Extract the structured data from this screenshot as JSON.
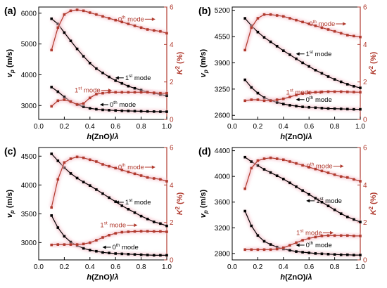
{
  "colors": {
    "left_series": "#000000",
    "right_series": "#b03a2e",
    "glow": "#f6c6cf"
  },
  "chart_data": [
    {
      "type": "line",
      "panel": "(a)",
      "xlabel_parts": [
        "h",
        "(ZnO)/",
        "λ"
      ],
      "ylabel_parts": [
        "v",
        "p",
        " (m/s)"
      ],
      "y2label_parts": [
        "K",
        "2",
        " (%)"
      ],
      "xlim": [
        0.0,
        1.0
      ],
      "xticks": [
        "0.0",
        "0.2",
        "0.4",
        "0.6",
        "0.8",
        "1.0"
      ],
      "ylim": [
        2550,
        6200
      ],
      "yticks": [
        3000,
        4000,
        5000,
        6000
      ],
      "y2lim": [
        0,
        6
      ],
      "y2ticks": [
        0,
        2,
        4,
        6
      ],
      "x": [
        0.1,
        0.15,
        0.2,
        0.25,
        0.3,
        0.35,
        0.4,
        0.45,
        0.5,
        0.55,
        0.6,
        0.65,
        0.7,
        0.75,
        0.8,
        0.85,
        0.9,
        0.95,
        1.0
      ],
      "series": [
        {
          "axis": "left",
          "values": [
            5820,
            5650,
            5370,
            5100,
            4840,
            4600,
            4380,
            4200,
            4060,
            3930,
            3810,
            3720,
            3630,
            3560,
            3500,
            3440,
            3400,
            3360,
            3320
          ]
        },
        {
          "axis": "left",
          "values": [
            3600,
            3450,
            3280,
            3130,
            3030,
            2960,
            2910,
            2880,
            2860,
            2850,
            2840,
            2830,
            2825,
            2820,
            2815,
            2810,
            2805,
            2800,
            2800
          ]
        },
        {
          "axis": "right",
          "values": [
            3.7,
            4.9,
            5.6,
            5.8,
            5.85,
            5.8,
            5.7,
            5.6,
            5.5,
            5.4,
            5.3,
            5.2,
            5.1,
            5.0,
            4.9,
            4.8,
            4.75,
            4.7,
            4.6
          ]
        },
        {
          "axis": "right",
          "values": [
            0.7,
            1.0,
            1.05,
            0.95,
            0.8,
            0.85,
            1.15,
            1.35,
            1.4,
            1.45,
            1.45,
            1.45,
            1.45,
            1.45,
            1.45,
            1.45,
            1.42,
            1.4,
            1.4
          ]
        }
      ],
      "annotations": [
        {
          "base": "0",
          "sup": "th",
          "tail": " mode",
          "color": "red",
          "x": 0.62,
          "axis": "right",
          "y": 5.35,
          "arrow": "right"
        },
        {
          "base": "1",
          "sup": "st",
          "tail": " mode",
          "color": "black",
          "x": 0.62,
          "axis": "left",
          "y": 3900,
          "arrow": "left"
        },
        {
          "base": "1",
          "sup": "st",
          "tail": " mode",
          "color": "red",
          "x": 0.28,
          "axis": "right",
          "y": 1.55,
          "arrow": "right"
        },
        {
          "base": "0",
          "sup": "th",
          "tail": " mode",
          "color": "black",
          "x": 0.5,
          "axis": "left",
          "y": 3030,
          "arrow": "left"
        }
      ]
    },
    {
      "type": "line",
      "panel": "(b)",
      "xlabel_parts": [
        "h",
        "(ZnO)/",
        "λ"
      ],
      "ylabel_parts": [
        "v",
        "p",
        " (m/s)"
      ],
      "y2label_parts": [
        "K",
        "2",
        " (%)"
      ],
      "xlim": [
        0.0,
        1.0
      ],
      "xticks": [
        "0.0",
        "0.2",
        "0.4",
        "0.6",
        "0.8",
        "1.0"
      ],
      "ylim": [
        2500,
        5280
      ],
      "yticks": [
        2600,
        3250,
        3900,
        4550,
        5200
      ],
      "y2lim": [
        0,
        6
      ],
      "y2ticks": [
        0,
        2,
        4,
        6
      ],
      "x": [
        0.1,
        0.15,
        0.2,
        0.25,
        0.3,
        0.35,
        0.4,
        0.45,
        0.5,
        0.55,
        0.6,
        0.65,
        0.7,
        0.75,
        0.8,
        0.85,
        0.9,
        0.95,
        1.0
      ],
      "series": [
        {
          "axis": "left",
          "values": [
            5000,
            4820,
            4660,
            4530,
            4420,
            4310,
            4200,
            4100,
            4000,
            3900,
            3810,
            3720,
            3640,
            3560,
            3490,
            3430,
            3370,
            3320,
            3280
          ]
        },
        {
          "axis": "left",
          "values": [
            3480,
            3290,
            3150,
            3040,
            2970,
            2920,
            2880,
            2850,
            2830,
            2810,
            2800,
            2790,
            2780,
            2770,
            2765,
            2760,
            2755,
            2750,
            2750
          ]
        },
        {
          "axis": "right",
          "values": [
            3.7,
            4.9,
            5.4,
            5.6,
            5.6,
            5.55,
            5.5,
            5.4,
            5.3,
            5.2,
            5.1,
            5.0,
            4.9,
            4.8,
            4.7,
            4.6,
            4.5,
            4.45,
            4.4
          ]
        },
        {
          "axis": "right",
          "values": [
            1.0,
            1.05,
            1.05,
            1.0,
            1.0,
            1.05,
            1.1,
            1.2,
            1.3,
            1.38,
            1.42,
            1.45,
            1.47,
            1.48,
            1.48,
            1.48,
            1.47,
            1.46,
            1.45
          ]
        }
      ],
      "annotations": [
        {
          "base": "0",
          "sup": "th",
          "tail": " mode",
          "color": "red",
          "x": 0.6,
          "axis": "right",
          "y": 5.1,
          "arrow": "right"
        },
        {
          "base": "1",
          "sup": "st",
          "tail": " mode",
          "color": "black",
          "x": 0.52,
          "axis": "left",
          "y": 4120,
          "arrow": "left"
        },
        {
          "base": "1",
          "sup": "st",
          "tail": " mode",
          "color": "red",
          "x": 0.42,
          "axis": "right",
          "y": 1.45,
          "arrow": "right"
        },
        {
          "base": "0",
          "sup": "th",
          "tail": " mode",
          "color": "black",
          "x": 0.52,
          "axis": "left",
          "y": 2990,
          "arrow": "left"
        }
      ]
    },
    {
      "type": "line",
      "panel": "(c)",
      "xlabel_parts": [
        "h",
        "(ZnO)/",
        "λ"
      ],
      "ylabel_parts": [
        "v",
        "p",
        " (m/s)"
      ],
      "y2label_parts": [
        "K",
        "2",
        " (%)"
      ],
      "xlim": [
        0.0,
        1.0
      ],
      "xticks": [
        "0.0",
        "0.2",
        "0.4",
        "0.6",
        "0.8",
        "1.0"
      ],
      "ylim": [
        2700,
        4650
      ],
      "yticks": [
        3000,
        3500,
        4000,
        4500
      ],
      "y2lim": [
        0,
        6
      ],
      "y2ticks": [
        0,
        2,
        4,
        6
      ],
      "x": [
        0.1,
        0.15,
        0.2,
        0.25,
        0.3,
        0.35,
        0.4,
        0.45,
        0.5,
        0.55,
        0.6,
        0.65,
        0.7,
        0.75,
        0.8,
        0.85,
        0.9,
        0.95,
        1.0
      ],
      "series": [
        {
          "axis": "left",
          "values": [
            4540,
            4420,
            4300,
            4200,
            4120,
            4050,
            3990,
            3920,
            3850,
            3780,
            3710,
            3640,
            3580,
            3520,
            3460,
            3410,
            3360,
            3330,
            3290
          ]
        },
        {
          "axis": "left",
          "values": [
            3470,
            3260,
            3110,
            3010,
            2950,
            2900,
            2870,
            2850,
            2830,
            2820,
            2810,
            2805,
            2800,
            2795,
            2790,
            2785,
            2780,
            2780,
            2780
          ]
        },
        {
          "axis": "right",
          "values": [
            2.8,
            4.3,
            5.2,
            5.4,
            5.5,
            5.45,
            5.35,
            5.25,
            5.1,
            5.0,
            4.9,
            4.8,
            4.7,
            4.6,
            4.5,
            4.4,
            4.35,
            4.3,
            4.2
          ]
        },
        {
          "axis": "right",
          "values": [
            0.8,
            0.82,
            0.82,
            0.82,
            0.82,
            0.85,
            0.92,
            1.05,
            1.2,
            1.32,
            1.42,
            1.48,
            1.5,
            1.52,
            1.53,
            1.53,
            1.52,
            1.52,
            1.5
          ]
        }
      ],
      "annotations": [
        {
          "base": "0",
          "sup": "th",
          "tail": " mode",
          "color": "red",
          "x": 0.62,
          "axis": "right",
          "y": 4.95,
          "arrow": "right"
        },
        {
          "base": "1",
          "sup": "st",
          "tail": " mode",
          "color": "black",
          "x": 0.62,
          "axis": "left",
          "y": 3700,
          "arrow": "left"
        },
        {
          "base": "1",
          "sup": "st",
          "tail": " mode",
          "color": "red",
          "x": 0.48,
          "axis": "right",
          "y": 1.85,
          "arrow": "right"
        },
        {
          "base": "0",
          "sup": "th",
          "tail": " mode",
          "color": "black",
          "x": 0.52,
          "axis": "left",
          "y": 2920,
          "arrow": "left"
        }
      ]
    },
    {
      "type": "line",
      "panel": "(d)",
      "xlabel_parts": [
        "h",
        "(ZnO)/",
        "λ"
      ],
      "ylabel_parts": [
        "v",
        "p",
        " (m/s)"
      ],
      "y2label_parts": [
        "K",
        "2",
        " (%)"
      ],
      "xlim": [
        0.0,
        1.0
      ],
      "xticks": [
        "0.0",
        "0.2",
        "0.4",
        "0.6",
        "0.8",
        "1.0"
      ],
      "ylim": [
        2700,
        4450
      ],
      "yticks": [
        2800,
        3200,
        3600,
        4000,
        4400
      ],
      "y2lim": [
        0,
        6
      ],
      "y2ticks": [
        0,
        2,
        4,
        6
      ],
      "x": [
        0.1,
        0.15,
        0.2,
        0.25,
        0.3,
        0.35,
        0.4,
        0.45,
        0.5,
        0.55,
        0.6,
        0.65,
        0.7,
        0.75,
        0.8,
        0.85,
        0.9,
        0.95,
        1.0
      ],
      "series": [
        {
          "axis": "left",
          "values": [
            4300,
            4230,
            4170,
            4110,
            4060,
            4010,
            3960,
            3900,
            3840,
            3780,
            3720,
            3660,
            3600,
            3540,
            3480,
            3420,
            3370,
            3330,
            3290
          ]
        },
        {
          "axis": "left",
          "values": [
            3460,
            3230,
            3080,
            2990,
            2940,
            2900,
            2870,
            2850,
            2830,
            2820,
            2810,
            2800,
            2795,
            2790,
            2785,
            2780,
            2780,
            2775,
            2775
          ]
        },
        {
          "axis": "right",
          "values": [
            3.8,
            4.9,
            5.3,
            5.4,
            5.45,
            5.4,
            5.35,
            5.25,
            5.15,
            5.05,
            4.95,
            4.85,
            4.75,
            4.65,
            4.55,
            4.45,
            4.4,
            4.3,
            4.2
          ]
        },
        {
          "axis": "right",
          "values": [
            0.55,
            0.55,
            0.55,
            0.55,
            0.55,
            0.58,
            0.65,
            0.78,
            0.92,
            1.05,
            1.15,
            1.22,
            1.28,
            1.3,
            1.3,
            1.3,
            1.3,
            1.28,
            1.28
          ]
        }
      ],
      "annotations": [
        {
          "base": "0",
          "sup": "th",
          "tail": " mode",
          "color": "red",
          "x": 0.58,
          "axis": "right",
          "y": 5.0,
          "arrow": "right"
        },
        {
          "base": "1",
          "sup": "st",
          "tail": " mode",
          "color": "black",
          "x": 0.6,
          "axis": "left",
          "y": 3620,
          "arrow": "left"
        },
        {
          "base": "1",
          "sup": "st",
          "tail": " mode",
          "color": "red",
          "x": 0.5,
          "axis": "right",
          "y": 1.45,
          "arrow": "right"
        },
        {
          "base": "0",
          "sup": "th",
          "tail": " mode",
          "color": "black",
          "x": 0.52,
          "axis": "left",
          "y": 2930,
          "arrow": "left"
        }
      ]
    }
  ]
}
